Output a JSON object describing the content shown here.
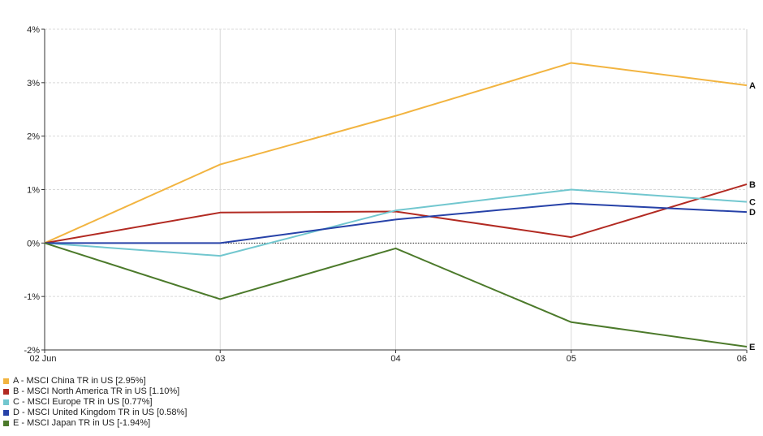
{
  "chart_data": {
    "type": "line",
    "x": [
      "02 Jun",
      "03",
      "04",
      "05",
      "06"
    ],
    "ylim": [
      -2,
      4
    ],
    "yticks": [
      -2,
      -1,
      0,
      1,
      2,
      3,
      4
    ],
    "ytick_labels": [
      "-2%",
      "-1%",
      "0%",
      "1%",
      "2%",
      "3%",
      "4%"
    ],
    "grid": true,
    "zero_line": true,
    "legend_placement": "bottom-left",
    "series": [
      {
        "code": "A",
        "name": "A - MSCI China TR in US [2.95%]",
        "color": "#F2B440",
        "values": [
          0,
          1.47,
          2.38,
          3.37,
          2.95
        ]
      },
      {
        "code": "B",
        "name": "B - MSCI North America TR in US [1.10%]",
        "color": "#B22A22",
        "values": [
          0,
          0.57,
          0.59,
          0.11,
          1.1
        ]
      },
      {
        "code": "C",
        "name": "C - MSCI Europe TR in US [0.77%]",
        "color": "#72C7CF",
        "values": [
          0,
          -0.24,
          0.61,
          1.0,
          0.77
        ]
      },
      {
        "code": "D",
        "name": "D - MSCI United Kingdom TR in US [0.58%]",
        "color": "#2742A8",
        "values": [
          0,
          0,
          0.44,
          0.74,
          0.58
        ]
      },
      {
        "code": "E",
        "name": "E - MSCI Japan TR in US [-1.94%]",
        "color": "#4C7A2B",
        "values": [
          0,
          -1.05,
          -0.1,
          -1.48,
          -1.94
        ]
      }
    ]
  }
}
